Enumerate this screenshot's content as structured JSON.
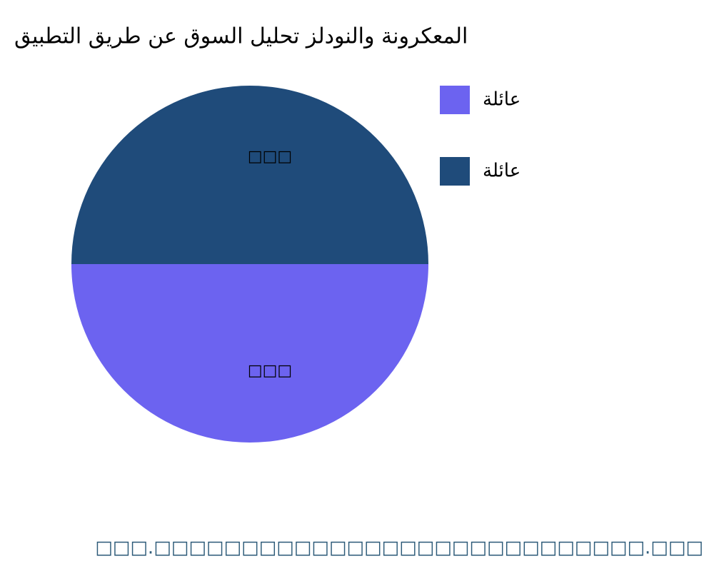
{
  "chart_data": {
    "type": "pie",
    "title": "المعكرونة والنودلز تحليل السوق عن طريق التطبيق",
    "categories": [
      "عائلة",
      "عائلة"
    ],
    "values": [
      50,
      50
    ],
    "value_labels": [
      "□□□",
      "□□□"
    ],
    "colors": [
      "#6c63f0",
      "#1f4b7a"
    ],
    "source": "□□□.□□□□□□□□□□□□□□□□□□□□□□□□□□□□.□□□"
  }
}
